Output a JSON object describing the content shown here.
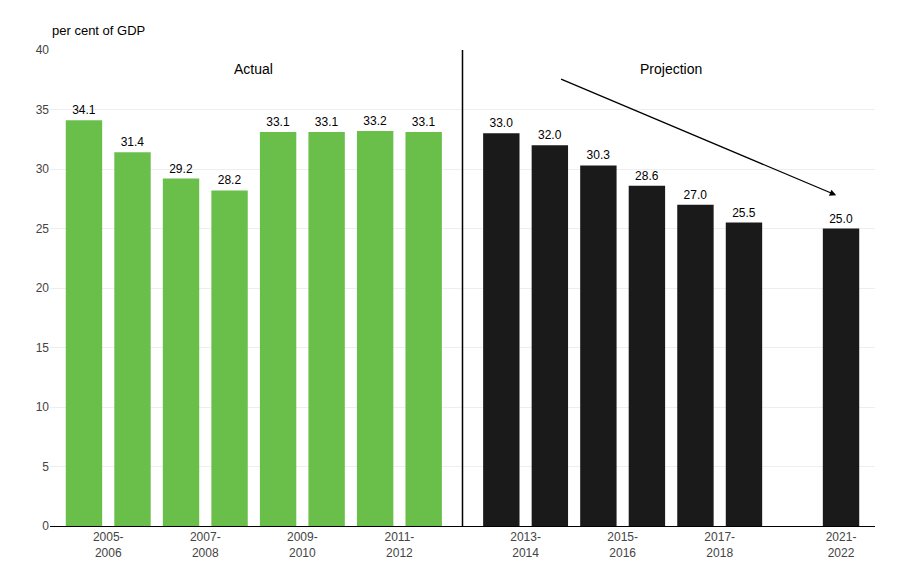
{
  "chart_data": {
    "type": "bar",
    "y_label": "per cent of GDP",
    "categories": [
      "2005-\n2006",
      null,
      "2007-\n2008",
      null,
      "2009-\n2010",
      null,
      "2011-\n2012",
      null,
      "2013-\n2014",
      null,
      "2015-\n2016",
      null,
      "2017-\n2018",
      null,
      "2021-\n2022"
    ],
    "series": [
      {
        "name": "Actual",
        "color": "#6abf4b",
        "values": [
          34.1,
          31.4,
          29.2,
          28.2,
          33.1,
          33.1,
          33.2,
          33.1,
          null,
          null,
          null,
          null,
          null,
          null,
          null
        ]
      },
      {
        "name": "Projection",
        "color": "#1a1a1a",
        "values": [
          null,
          null,
          null,
          null,
          null,
          null,
          null,
          null,
          33.0,
          32.0,
          30.3,
          28.6,
          27.0,
          25.5,
          25.0
        ],
        "value_labels": [
          null,
          null,
          null,
          null,
          null,
          null,
          null,
          null,
          "33.0",
          "32.0",
          "30.3",
          "28.6",
          "27.0",
          "25.5",
          "25.0"
        ]
      }
    ],
    "ylim": [
      0,
      40
    ],
    "yticks": [
      0,
      5,
      10,
      15,
      20,
      25,
      30,
      35,
      40
    ],
    "grid": true,
    "data_labels": true
  }
}
